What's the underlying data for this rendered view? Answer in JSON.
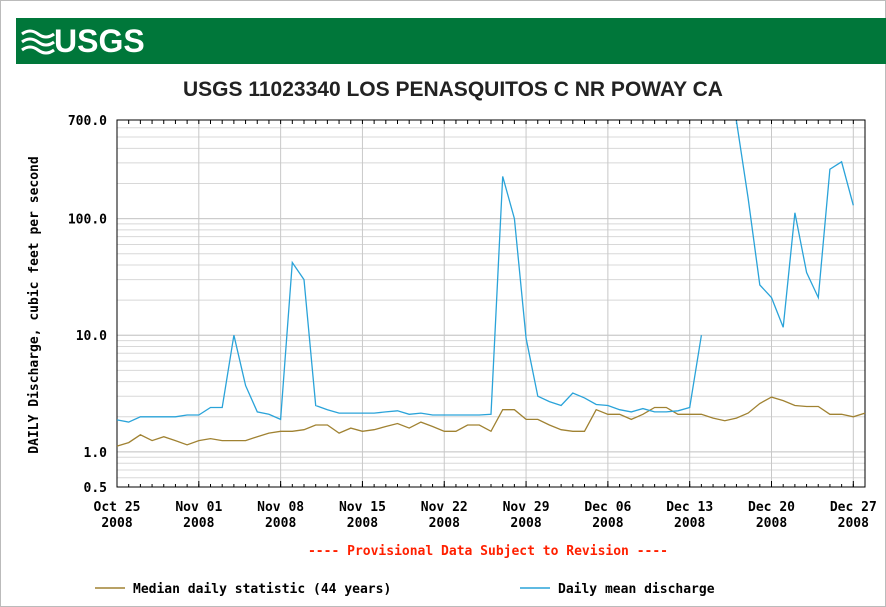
{
  "logo": "USGS",
  "chart_data": {
    "type": "line",
    "title": "USGS 11023340 LOS PENASQUITOS C NR POWAY CA",
    "ylabel": "DAILY Discharge, cubic feet per second",
    "note": "---- Provisional Data Subject to Revision ----",
    "log_y": true,
    "grid": true,
    "ylim": [
      0.5,
      700
    ],
    "yticks": [
      {
        "value": 0.5,
        "label": "0.5"
      },
      {
        "value": 1,
        "label": "1.0"
      },
      {
        "value": 10,
        "label": "10.0"
      },
      {
        "value": 100,
        "label": "100.0"
      },
      {
        "value": 700,
        "label": "700.0"
      }
    ],
    "xlim": [
      "2008-10-25",
      "2008-12-28"
    ],
    "xticks": [
      {
        "value": "2008-10-25",
        "label": "Oct 25",
        "year": "2008"
      },
      {
        "value": "2008-11-01",
        "label": "Nov 01",
        "year": "2008"
      },
      {
        "value": "2008-11-08",
        "label": "Nov 08",
        "year": "2008"
      },
      {
        "value": "2008-11-15",
        "label": "Nov 15",
        "year": "2008"
      },
      {
        "value": "2008-11-22",
        "label": "Nov 22",
        "year": "2008"
      },
      {
        "value": "2008-11-29",
        "label": "Nov 29",
        "year": "2008"
      },
      {
        "value": "2008-12-06",
        "label": "Dec 06",
        "year": "2008"
      },
      {
        "value": "2008-12-13",
        "label": "Dec 13",
        "year": "2008"
      },
      {
        "value": "2008-12-20",
        "label": "Dec 20",
        "year": "2008"
      },
      {
        "value": "2008-12-27",
        "label": "Dec 27",
        "year": "2008"
      }
    ],
    "x": [
      "2008-10-25",
      "2008-10-26",
      "2008-10-27",
      "2008-10-28",
      "2008-10-29",
      "2008-10-30",
      "2008-10-31",
      "2008-11-01",
      "2008-11-02",
      "2008-11-03",
      "2008-11-04",
      "2008-11-05",
      "2008-11-06",
      "2008-11-07",
      "2008-11-08",
      "2008-11-09",
      "2008-11-10",
      "2008-11-11",
      "2008-11-12",
      "2008-11-13",
      "2008-11-14",
      "2008-11-15",
      "2008-11-16",
      "2008-11-17",
      "2008-11-18",
      "2008-11-19",
      "2008-11-20",
      "2008-11-21",
      "2008-11-22",
      "2008-11-23",
      "2008-11-24",
      "2008-11-25",
      "2008-11-26",
      "2008-11-27",
      "2008-11-28",
      "2008-11-29",
      "2008-11-30",
      "2008-12-01",
      "2008-12-02",
      "2008-12-03",
      "2008-12-04",
      "2008-12-05",
      "2008-12-06",
      "2008-12-07",
      "2008-12-08",
      "2008-12-09",
      "2008-12-10",
      "2008-12-11",
      "2008-12-12",
      "2008-12-13",
      "2008-12-14",
      "2008-12-15",
      "2008-12-16",
      "2008-12-17",
      "2008-12-18",
      "2008-12-19",
      "2008-12-20",
      "2008-12-21",
      "2008-12-22",
      "2008-12-23",
      "2008-12-24",
      "2008-12-25",
      "2008-12-26",
      "2008-12-27",
      "2008-12-28"
    ],
    "series": [
      {
        "name": "Median daily statistic (44 years)",
        "color": "#a08232",
        "values": [
          1.12,
          1.2,
          1.4,
          1.25,
          1.35,
          1.25,
          1.15,
          1.25,
          1.3,
          1.25,
          1.25,
          1.25,
          1.35,
          1.45,
          1.5,
          1.5,
          1.55,
          1.7,
          1.7,
          1.45,
          1.6,
          1.5,
          1.55,
          1.65,
          1.75,
          1.6,
          1.8,
          1.65,
          1.5,
          1.5,
          1.7,
          1.7,
          1.5,
          2.3,
          2.3,
          1.9,
          1.9,
          1.7,
          1.55,
          1.5,
          1.5,
          2.3,
          2.1,
          2.1,
          1.9,
          2.1,
          2.4,
          2.4,
          2.1,
          2.1,
          2.1,
          1.95,
          1.85,
          1.95,
          2.15,
          2.6,
          2.95,
          2.75,
          2.5,
          2.45,
          2.45,
          2.1,
          2.1,
          2.0,
          2.15
        ]
      },
      {
        "name": "Daily mean discharge",
        "color": "#2aa3d9",
        "values": [
          1.88,
          1.8,
          2.0,
          2.0,
          2.0,
          2.0,
          2.07,
          2.07,
          2.4,
          2.4,
          10,
          3.7,
          2.2,
          2.1,
          1.9,
          42,
          30,
          2.5,
          2.3,
          2.15,
          2.15,
          2.15,
          2.15,
          2.2,
          2.25,
          2.1,
          2.15,
          2.07,
          2.07,
          2.07,
          2.07,
          2.07,
          2.1,
          230,
          100,
          9.4,
          3.0,
          2.7,
          2.5,
          3.2,
          2.9,
          2.55,
          2.5,
          2.3,
          2.2,
          2.35,
          2.2,
          2.2,
          2.25,
          2.4,
          10,
          null,
          null,
          690,
          150,
          27,
          21,
          11.7,
          112,
          34.5,
          21,
          265,
          307,
          130,
          null
        ]
      }
    ]
  }
}
